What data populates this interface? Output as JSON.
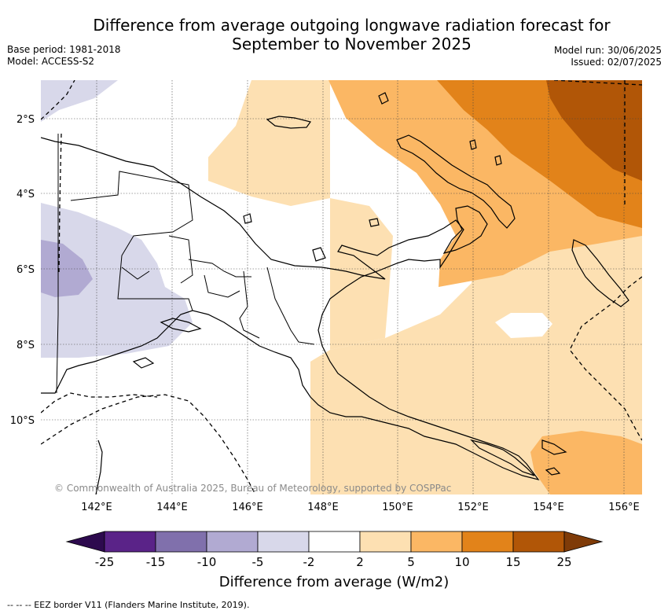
{
  "header": {
    "title_line1": "Difference from average outgoing longwave radiation forecast for",
    "title_line2": "September to November 2025",
    "base_period": "Base period: 1981-2018",
    "model": "Model: ACCESS-S2",
    "model_run": "Model run: 30/06/2025",
    "issued": "Issued: 02/07/2025"
  },
  "map": {
    "lat_labels": [
      "2°S",
      "4°S",
      "6°S",
      "8°S",
      "10°S"
    ],
    "lon_labels": [
      "142°E",
      "144°E",
      "146°E",
      "148°E",
      "150°E",
      "152°E",
      "154°E",
      "156°E"
    ],
    "credit": "© Commonwealth of Australia 2025, Bureau of Meteorology, supported by COSPPac"
  },
  "colorbar": {
    "title": "Difference from average (W/m2)",
    "labels": [
      "-25",
      "-15",
      "-10",
      "-5",
      "-2",
      "2",
      "5",
      "10",
      "15",
      "25"
    ],
    "colors": {
      "lt_neg25": "#2d0a4e",
      "neg25_neg15": "#5a2388",
      "neg15_neg10": "#8070ac",
      "neg10_neg5": "#b1aad2",
      "neg5_neg2": "#d8d8ea",
      "neg2_2": "#ffffff",
      "2_5": "#fde0b2",
      "5_10": "#fbb764",
      "10_15": "#e2831a",
      "15_25": "#b15607",
      "gt25": "#7f3b08"
    }
  },
  "footer": {
    "legend": "--  --  -- EEZ border V11 (Flanders Marine Institute, 2019)."
  }
}
